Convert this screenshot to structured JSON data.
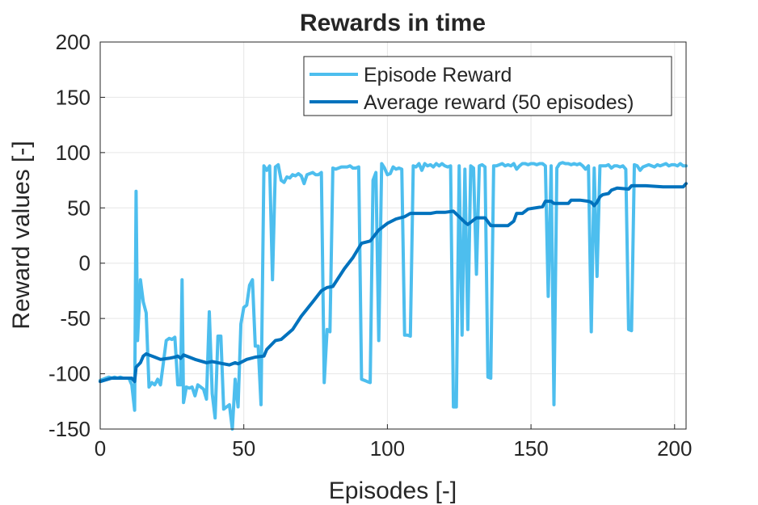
{
  "chart_data": {
    "type": "line",
    "title": "Rewards in time",
    "xlabel": "Episodes [-]",
    "ylabel": "Reward values [-]",
    "xlim": [
      0,
      204
    ],
    "ylim": [
      -150,
      200
    ],
    "xticks": [
      0,
      50,
      100,
      150,
      200
    ],
    "yticks": [
      -150,
      -100,
      -50,
      0,
      50,
      100,
      150,
      200
    ],
    "xtick_labels": [
      "0",
      "50",
      "100",
      "150",
      "200"
    ],
    "ytick_labels": [
      "-150",
      "-100",
      "-50",
      "0",
      "50",
      "100",
      "150",
      "200"
    ],
    "grid": true,
    "legend_position": "top-right",
    "series": [
      {
        "name": "Episode Reward",
        "color": "#4DBEEE",
        "points": [
          [
            0,
            -106
          ],
          [
            1,
            -105
          ],
          [
            2,
            -104
          ],
          [
            3,
            -103
          ],
          [
            4,
            -104
          ],
          [
            5,
            -103
          ],
          [
            6,
            -104
          ],
          [
            7,
            -103
          ],
          [
            8,
            -104
          ],
          [
            9,
            -104
          ],
          [
            10,
            -104
          ],
          [
            11,
            -110
          ],
          [
            12,
            -133
          ],
          [
            12.5,
            65
          ],
          [
            13,
            -70
          ],
          [
            14,
            -15
          ],
          [
            15,
            -35
          ],
          [
            16,
            -45
          ],
          [
            17,
            -112
          ],
          [
            18,
            -108
          ],
          [
            19,
            -110
          ],
          [
            20,
            -105
          ],
          [
            21,
            -110
          ],
          [
            22,
            -90
          ],
          [
            23,
            -70
          ],
          [
            24,
            -68
          ],
          [
            25,
            -69
          ],
          [
            26,
            -67
          ],
          [
            27,
            -110
          ],
          [
            28,
            -110
          ],
          [
            28.5,
            -15
          ],
          [
            29,
            -126
          ],
          [
            30,
            -112
          ],
          [
            31,
            -113
          ],
          [
            32,
            -112
          ],
          [
            33,
            -120
          ],
          [
            34,
            -110
          ],
          [
            35,
            -112
          ],
          [
            36,
            -114
          ],
          [
            37,
            -123
          ],
          [
            38,
            -44
          ],
          [
            39,
            -118
          ],
          [
            40,
            -140
          ],
          [
            41,
            -66
          ],
          [
            42,
            -66
          ],
          [
            43,
            -132
          ],
          [
            44,
            -130
          ],
          [
            45,
            -128
          ],
          [
            46,
            -150
          ],
          [
            47,
            -105
          ],
          [
            48,
            -130
          ],
          [
            49,
            -55
          ],
          [
            50,
            -40
          ],
          [
            51,
            -38
          ],
          [
            52,
            -20
          ],
          [
            53,
            -15
          ],
          [
            54,
            -75
          ],
          [
            55,
            -75
          ],
          [
            56,
            -128
          ],
          [
            57,
            88
          ],
          [
            58,
            84
          ],
          [
            59,
            88
          ],
          [
            60,
            -15
          ],
          [
            61,
            87
          ],
          [
            62,
            89
          ],
          [
            63,
            75
          ],
          [
            64,
            73
          ],
          [
            65,
            78
          ],
          [
            66,
            77
          ],
          [
            67,
            80
          ],
          [
            68,
            79
          ],
          [
            69,
            81
          ],
          [
            70,
            79
          ],
          [
            71,
            72
          ],
          [
            72,
            80
          ],
          [
            73,
            81
          ],
          [
            74,
            82
          ],
          [
            75,
            80
          ],
          [
            76,
            80
          ],
          [
            77,
            82
          ],
          [
            78,
            -108
          ],
          [
            79,
            -60
          ],
          [
            80,
            -62
          ],
          [
            81,
            86
          ],
          [
            82,
            85
          ],
          [
            83,
            86
          ],
          [
            84,
            87
          ],
          [
            85,
            87
          ],
          [
            86,
            87
          ],
          [
            87,
            88
          ],
          [
            88,
            86
          ],
          [
            89,
            86
          ],
          [
            90,
            87
          ],
          [
            91,
            -105
          ],
          [
            92,
            -106
          ],
          [
            93,
            -107
          ],
          [
            94,
            -108
          ],
          [
            95,
            75
          ],
          [
            96,
            82
          ],
          [
            97,
            -70
          ],
          [
            98,
            90
          ],
          [
            99,
            86
          ],
          [
            100,
            80
          ],
          [
            101,
            81
          ],
          [
            102,
            87
          ],
          [
            103,
            85
          ],
          [
            104,
            86
          ],
          [
            105,
            85
          ],
          [
            106,
            -65
          ],
          [
            107,
            -65
          ],
          [
            108,
            -66
          ],
          [
            109,
            88
          ],
          [
            110,
            87
          ],
          [
            111,
            90
          ],
          [
            112,
            84
          ],
          [
            113,
            90
          ],
          [
            114,
            88
          ],
          [
            115,
            89
          ],
          [
            116,
            87
          ],
          [
            117,
            90
          ],
          [
            118,
            88
          ],
          [
            119,
            90
          ],
          [
            120,
            88
          ],
          [
            121,
            87
          ],
          [
            122,
            88
          ],
          [
            123,
            -130
          ],
          [
            124,
            -130
          ],
          [
            125,
            88
          ],
          [
            126,
            -65
          ],
          [
            127,
            85
          ],
          [
            128,
            -60
          ],
          [
            129,
            88
          ],
          [
            130,
            86
          ],
          [
            131,
            -10
          ],
          [
            132,
            88
          ],
          [
            133,
            89
          ],
          [
            134,
            87
          ],
          [
            135,
            -103
          ],
          [
            136,
            -104
          ],
          [
            137,
            88
          ],
          [
            138,
            88
          ],
          [
            139,
            89
          ],
          [
            140,
            90
          ],
          [
            141,
            88
          ],
          [
            142,
            89
          ],
          [
            143,
            88
          ],
          [
            144,
            90
          ],
          [
            145,
            85
          ],
          [
            146,
            88
          ],
          [
            147,
            90
          ],
          [
            148,
            90
          ],
          [
            149,
            89
          ],
          [
            150,
            90
          ],
          [
            151,
            90
          ],
          [
            152,
            89
          ],
          [
            153,
            90
          ],
          [
            154,
            90
          ],
          [
            155,
            88
          ],
          [
            156,
            -30
          ],
          [
            157,
            88
          ],
          [
            158,
            -128
          ],
          [
            159,
            86
          ],
          [
            160,
            90
          ],
          [
            161,
            91
          ],
          [
            162,
            90
          ],
          [
            163,
            90
          ],
          [
            164,
            89
          ],
          [
            165,
            90
          ],
          [
            166,
            89
          ],
          [
            167,
            90
          ],
          [
            168,
            88
          ],
          [
            169,
            85
          ],
          [
            170,
            88
          ],
          [
            171,
            -62
          ],
          [
            172,
            86
          ],
          [
            173,
            -12
          ],
          [
            174,
            88
          ],
          [
            175,
            88
          ],
          [
            176,
            88
          ],
          [
            177,
            89
          ],
          [
            178,
            86
          ],
          [
            179,
            88
          ],
          [
            180,
            88
          ],
          [
            181,
            87
          ],
          [
            182,
            88
          ],
          [
            183,
            85
          ],
          [
            184,
            -60
          ],
          [
            185,
            -61
          ],
          [
            186,
            89
          ],
          [
            187,
            88
          ],
          [
            188,
            84
          ],
          [
            189,
            87
          ],
          [
            190,
            88
          ],
          [
            191,
            89
          ],
          [
            192,
            88
          ],
          [
            193,
            87
          ],
          [
            194,
            89
          ],
          [
            195,
            88
          ],
          [
            196,
            89
          ],
          [
            197,
            90
          ],
          [
            198,
            88
          ],
          [
            199,
            89
          ],
          [
            200,
            89
          ],
          [
            201,
            88
          ],
          [
            202,
            90
          ],
          [
            203,
            88
          ],
          [
            204,
            88
          ]
        ]
      },
      {
        "name": "Average reward (50 episodes)",
        "color": "#0072BD",
        "points": [
          [
            0,
            -107
          ],
          [
            4,
            -104
          ],
          [
            11,
            -104
          ],
          [
            12,
            -107
          ],
          [
            12.5,
            -94
          ],
          [
            14,
            -90
          ],
          [
            15,
            -84
          ],
          [
            16,
            -82
          ],
          [
            17,
            -83
          ],
          [
            19,
            -85
          ],
          [
            21,
            -87
          ],
          [
            24,
            -86
          ],
          [
            26,
            -85
          ],
          [
            27,
            -84
          ],
          [
            28,
            -86
          ],
          [
            29,
            -83
          ],
          [
            33,
            -87
          ],
          [
            37,
            -90
          ],
          [
            39,
            -89
          ],
          [
            41,
            -90
          ],
          [
            45,
            -92
          ],
          [
            47,
            -90
          ],
          [
            48,
            -91
          ],
          [
            51,
            -87
          ],
          [
            54,
            -85
          ],
          [
            57,
            -84
          ],
          [
            58,
            -78
          ],
          [
            61,
            -70
          ],
          [
            63,
            -69
          ],
          [
            67,
            -60
          ],
          [
            70,
            -48
          ],
          [
            74,
            -35
          ],
          [
            77,
            -25
          ],
          [
            79,
            -22
          ],
          [
            81,
            -21
          ],
          [
            85,
            -5
          ],
          [
            88,
            5
          ],
          [
            91,
            18
          ],
          [
            94,
            20
          ],
          [
            97,
            30
          ],
          [
            100,
            36
          ],
          [
            103,
            40
          ],
          [
            106,
            42
          ],
          [
            108,
            45
          ],
          [
            112,
            45
          ],
          [
            115,
            45
          ],
          [
            117,
            46
          ],
          [
            120,
            46
          ],
          [
            123,
            47
          ],
          [
            127,
            37
          ],
          [
            128,
            35
          ],
          [
            131,
            41
          ],
          [
            134,
            41
          ],
          [
            136,
            34
          ],
          [
            142,
            34
          ],
          [
            144,
            38
          ],
          [
            145,
            45
          ],
          [
            147,
            45
          ],
          [
            149,
            49
          ],
          [
            154,
            51
          ],
          [
            155,
            56
          ],
          [
            157,
            56
          ],
          [
            158,
            54
          ],
          [
            161,
            54
          ],
          [
            163,
            54
          ],
          [
            164,
            57
          ],
          [
            167,
            57
          ],
          [
            170,
            56
          ],
          [
            171,
            55
          ],
          [
            172,
            52
          ],
          [
            173,
            55
          ],
          [
            174,
            60
          ],
          [
            175,
            62
          ],
          [
            177,
            63
          ],
          [
            178,
            66
          ],
          [
            180,
            68
          ],
          [
            184,
            67
          ],
          [
            185,
            70
          ],
          [
            190,
            70
          ],
          [
            196,
            69
          ],
          [
            201,
            69
          ],
          [
            203,
            69
          ],
          [
            204,
            72
          ]
        ]
      }
    ]
  }
}
